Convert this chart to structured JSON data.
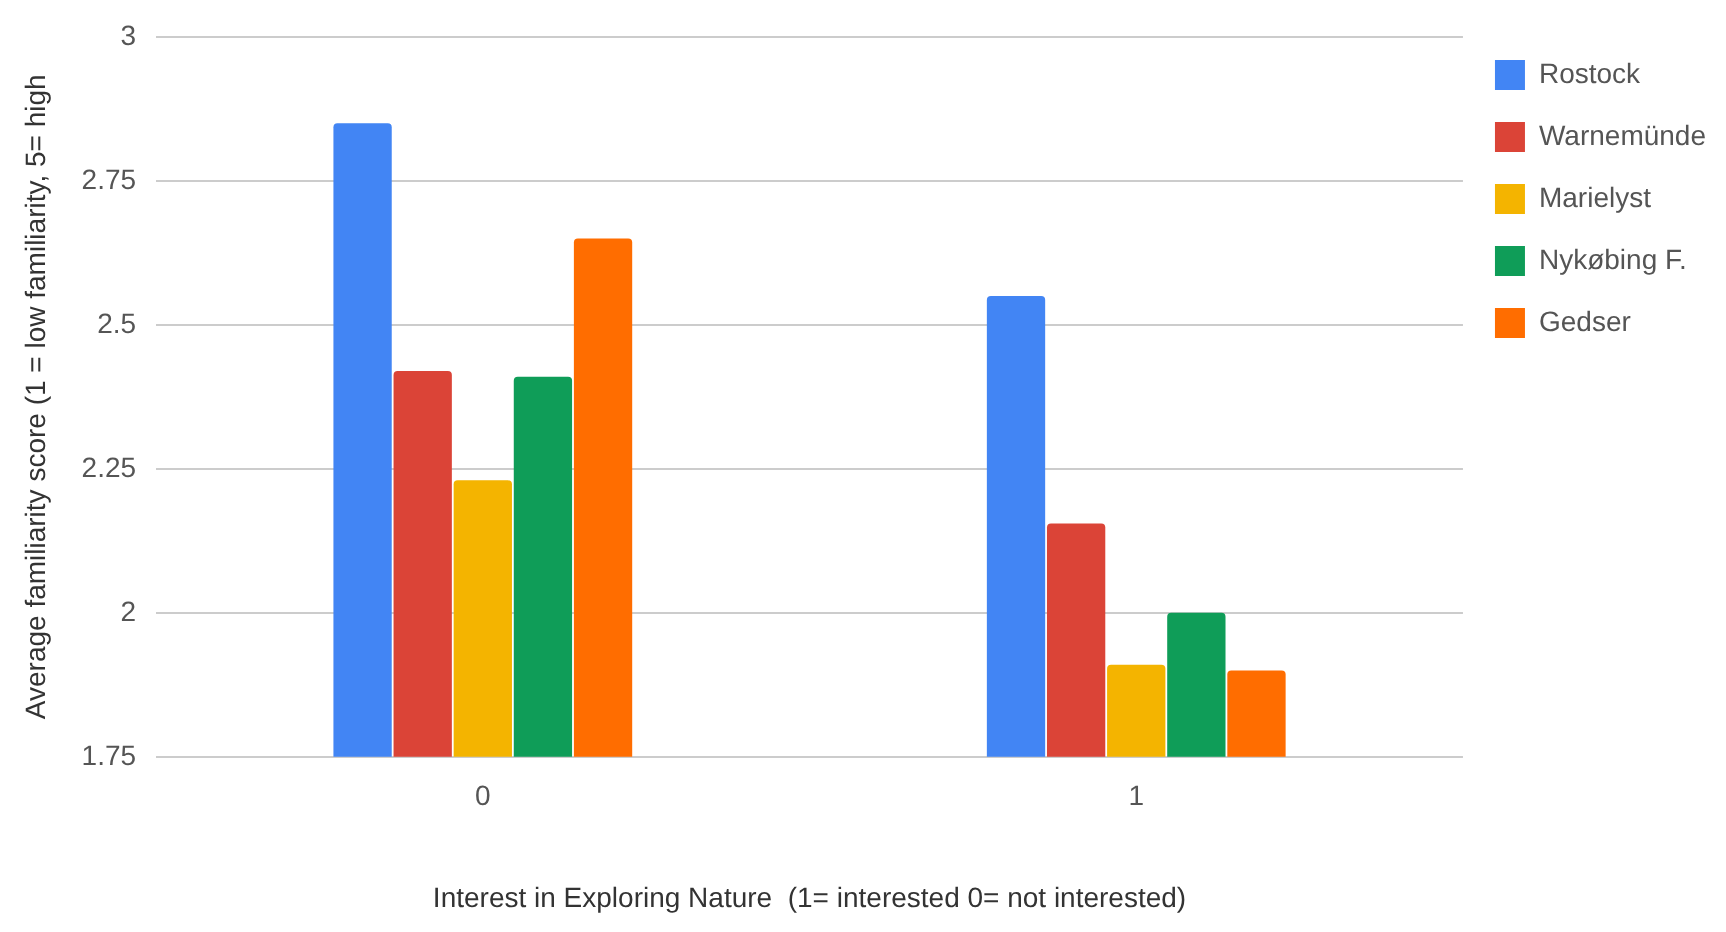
{
  "chart_data": {
    "type": "bar",
    "xlabel": "Interest in Exploring Nature  (1= interested 0= not interested)",
    "ylabel": "Average familiarity score (1 = low familiarity, 5= high",
    "categories": [
      "0",
      "1"
    ],
    "series": [
      {
        "name": "Rostock",
        "color": "#4285f4",
        "values": [
          2.85,
          2.55
        ]
      },
      {
        "name": "Warnemünde",
        "color": "#db4437",
        "values": [
          2.42,
          2.155
        ]
      },
      {
        "name": "Marielyst",
        "color": "#f4b400",
        "values": [
          2.23,
          1.91
        ]
      },
      {
        "name": "Nykøbing F.",
        "color": "#0f9d58",
        "values": [
          2.41,
          2.0
        ]
      },
      {
        "name": "Gedser",
        "color": "#ff6d00",
        "values": [
          2.65,
          1.9
        ]
      }
    ],
    "ylim": [
      1.75,
      3
    ],
    "yticks": [
      1.75,
      2,
      2.25,
      2.5,
      2.75,
      3
    ],
    "grid": "y",
    "legend": "right"
  }
}
